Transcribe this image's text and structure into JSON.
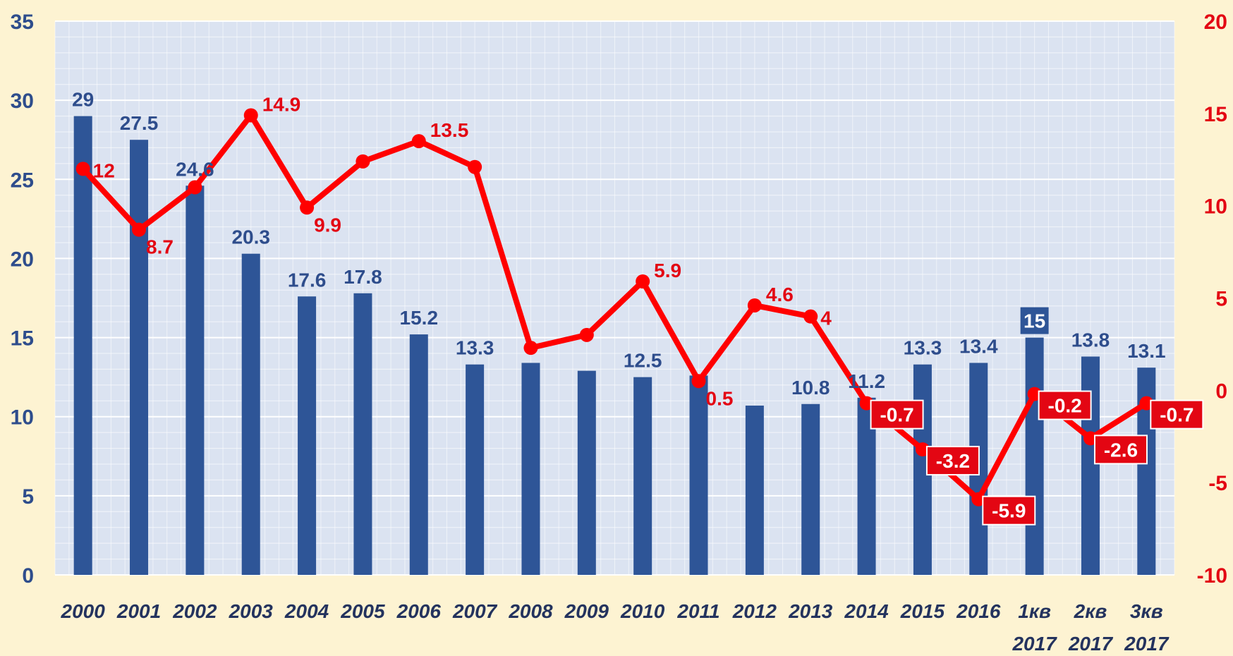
{
  "chart_data": {
    "type": "bar",
    "categories": [
      "2000",
      "2001",
      "2002",
      "2003",
      "2004",
      "2005",
      "2006",
      "2007",
      "2008",
      "2009",
      "2010",
      "2011",
      "2012",
      "2013",
      "2014",
      "2015",
      "2016",
      "1кв 2017",
      "2кв 2017",
      "3кв 2017"
    ],
    "series": [
      {
        "type": "bar",
        "axis": "left",
        "values": [
          29,
          27.5,
          24.6,
          20.3,
          17.6,
          17.8,
          15.2,
          13.3,
          13.4,
          12.9,
          12.5,
          12.6,
          10.7,
          10.8,
          11.2,
          13.3,
          13.4,
          15,
          13.8,
          13.1
        ],
        "labels": [
          "29",
          "27.5",
          "24.6",
          "20.3",
          "17.6",
          "17.8",
          "15.2",
          "13.3",
          "",
          "",
          "12.5",
          "",
          "",
          "10.8",
          "11.2",
          "13.3",
          "13.4",
          "15",
          "13.8",
          "13.1"
        ],
        "color": "#2e5597"
      },
      {
        "type": "line",
        "axis": "right",
        "values": [
          12,
          8.7,
          11,
          14.9,
          9.9,
          12.4,
          13.5,
          12.1,
          2.3,
          3,
          5.9,
          0.5,
          4.6,
          4,
          -0.7,
          -3.2,
          -5.9,
          -0.2,
          -2.6,
          -0.7
        ],
        "labels": [
          "12",
          "8.7",
          "",
          "14.9",
          "9.9",
          "",
          "13.5",
          "",
          "",
          "",
          "5.9",
          "0.5",
          "4.6",
          "4",
          "-0.7",
          "-3.2",
          "-5.9",
          "-0.2",
          "-2.6",
          "-0.7"
        ],
        "color": "#ff0000"
      }
    ],
    "y_left": {
      "min": 0,
      "max": 35,
      "ticks": [
        0,
        5,
        10,
        15,
        20,
        25,
        30,
        35
      ]
    },
    "y_right": {
      "min": -10,
      "max": 20,
      "ticks": [
        -10,
        -5,
        0,
        5,
        10,
        15,
        20
      ]
    },
    "title": "",
    "xlabel": "",
    "ylabel": "",
    "grid": true,
    "colors": {
      "background": "#fdf3d2",
      "plot_area": "#dbe3f1",
      "gridline": "#ffffff",
      "left_axis_text": "#2e4d8c",
      "right_axis_text": "#e30613",
      "category_text": "#24335e"
    }
  }
}
